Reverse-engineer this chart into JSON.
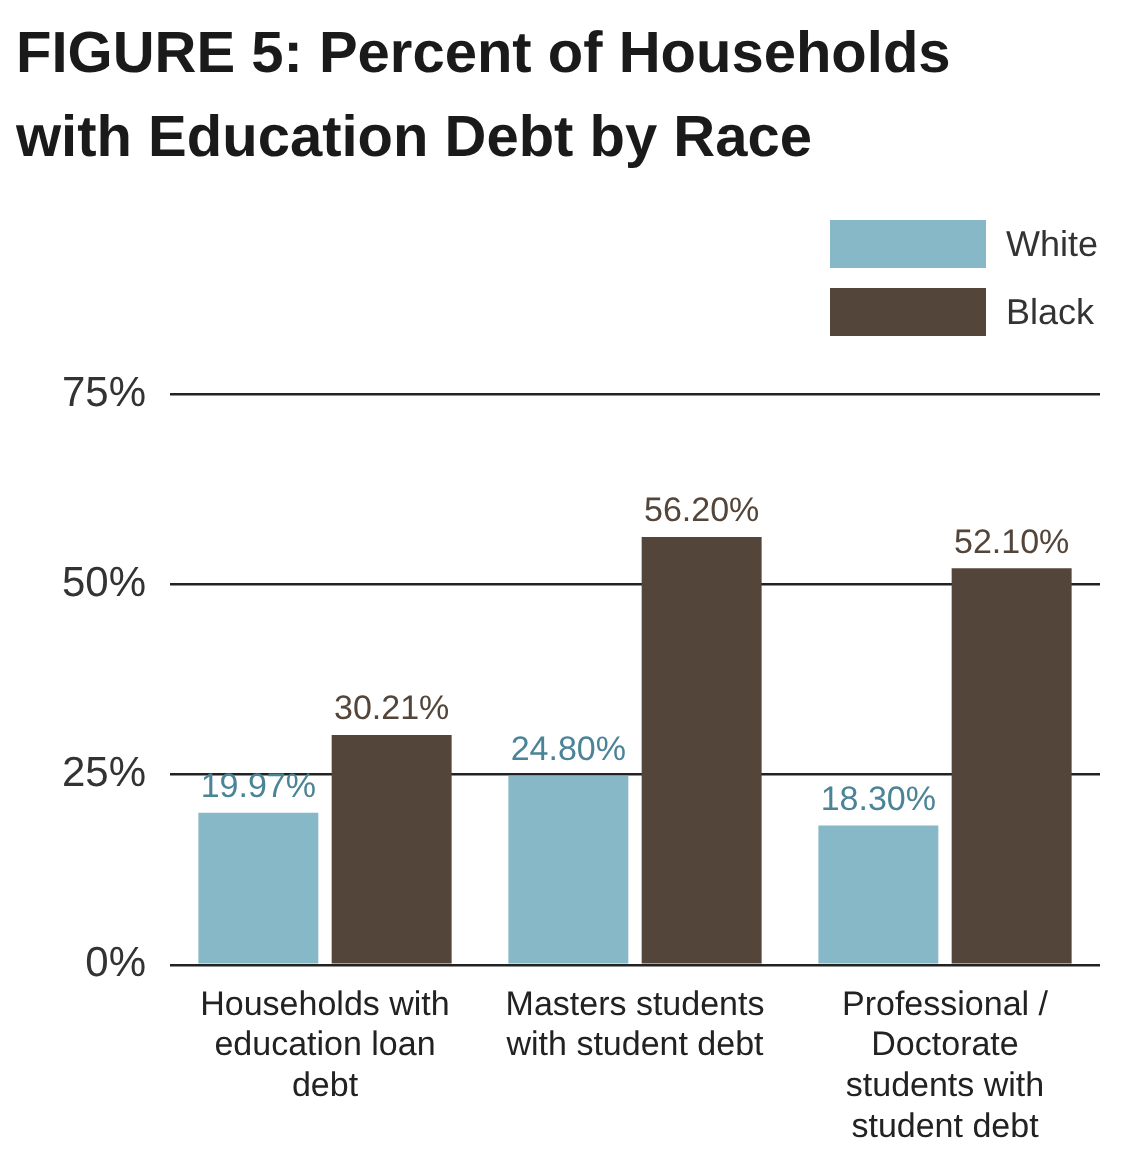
{
  "chart_data": {
    "type": "bar",
    "title": "FIGURE 5: Percent of Households with Education Debt by Race",
    "categories": [
      "Households with education loan debt",
      "Masters students with student debt",
      "Professional / Doctorate students with student debt"
    ],
    "series": [
      {
        "name": "White",
        "color": "#86b8c8",
        "values": [
          19.97,
          24.8,
          18.3
        ],
        "value_labels": [
          "19.97%",
          "24.80%",
          "18.30%"
        ]
      },
      {
        "name": "Black",
        "color": "#54453a",
        "values": [
          30.21,
          56.2,
          52.1
        ],
        "value_labels": [
          "30.21%",
          "56.20%",
          "52.10%"
        ]
      }
    ],
    "ylim": [
      0,
      75
    ],
    "yticks": [
      {
        "value": 0,
        "label": "0%"
      },
      {
        "value": 25,
        "label": "25%"
      },
      {
        "value": 50,
        "label": "50%"
      },
      {
        "value": 75,
        "label": "75%"
      }
    ],
    "grid": "y",
    "legend": "top right"
  }
}
